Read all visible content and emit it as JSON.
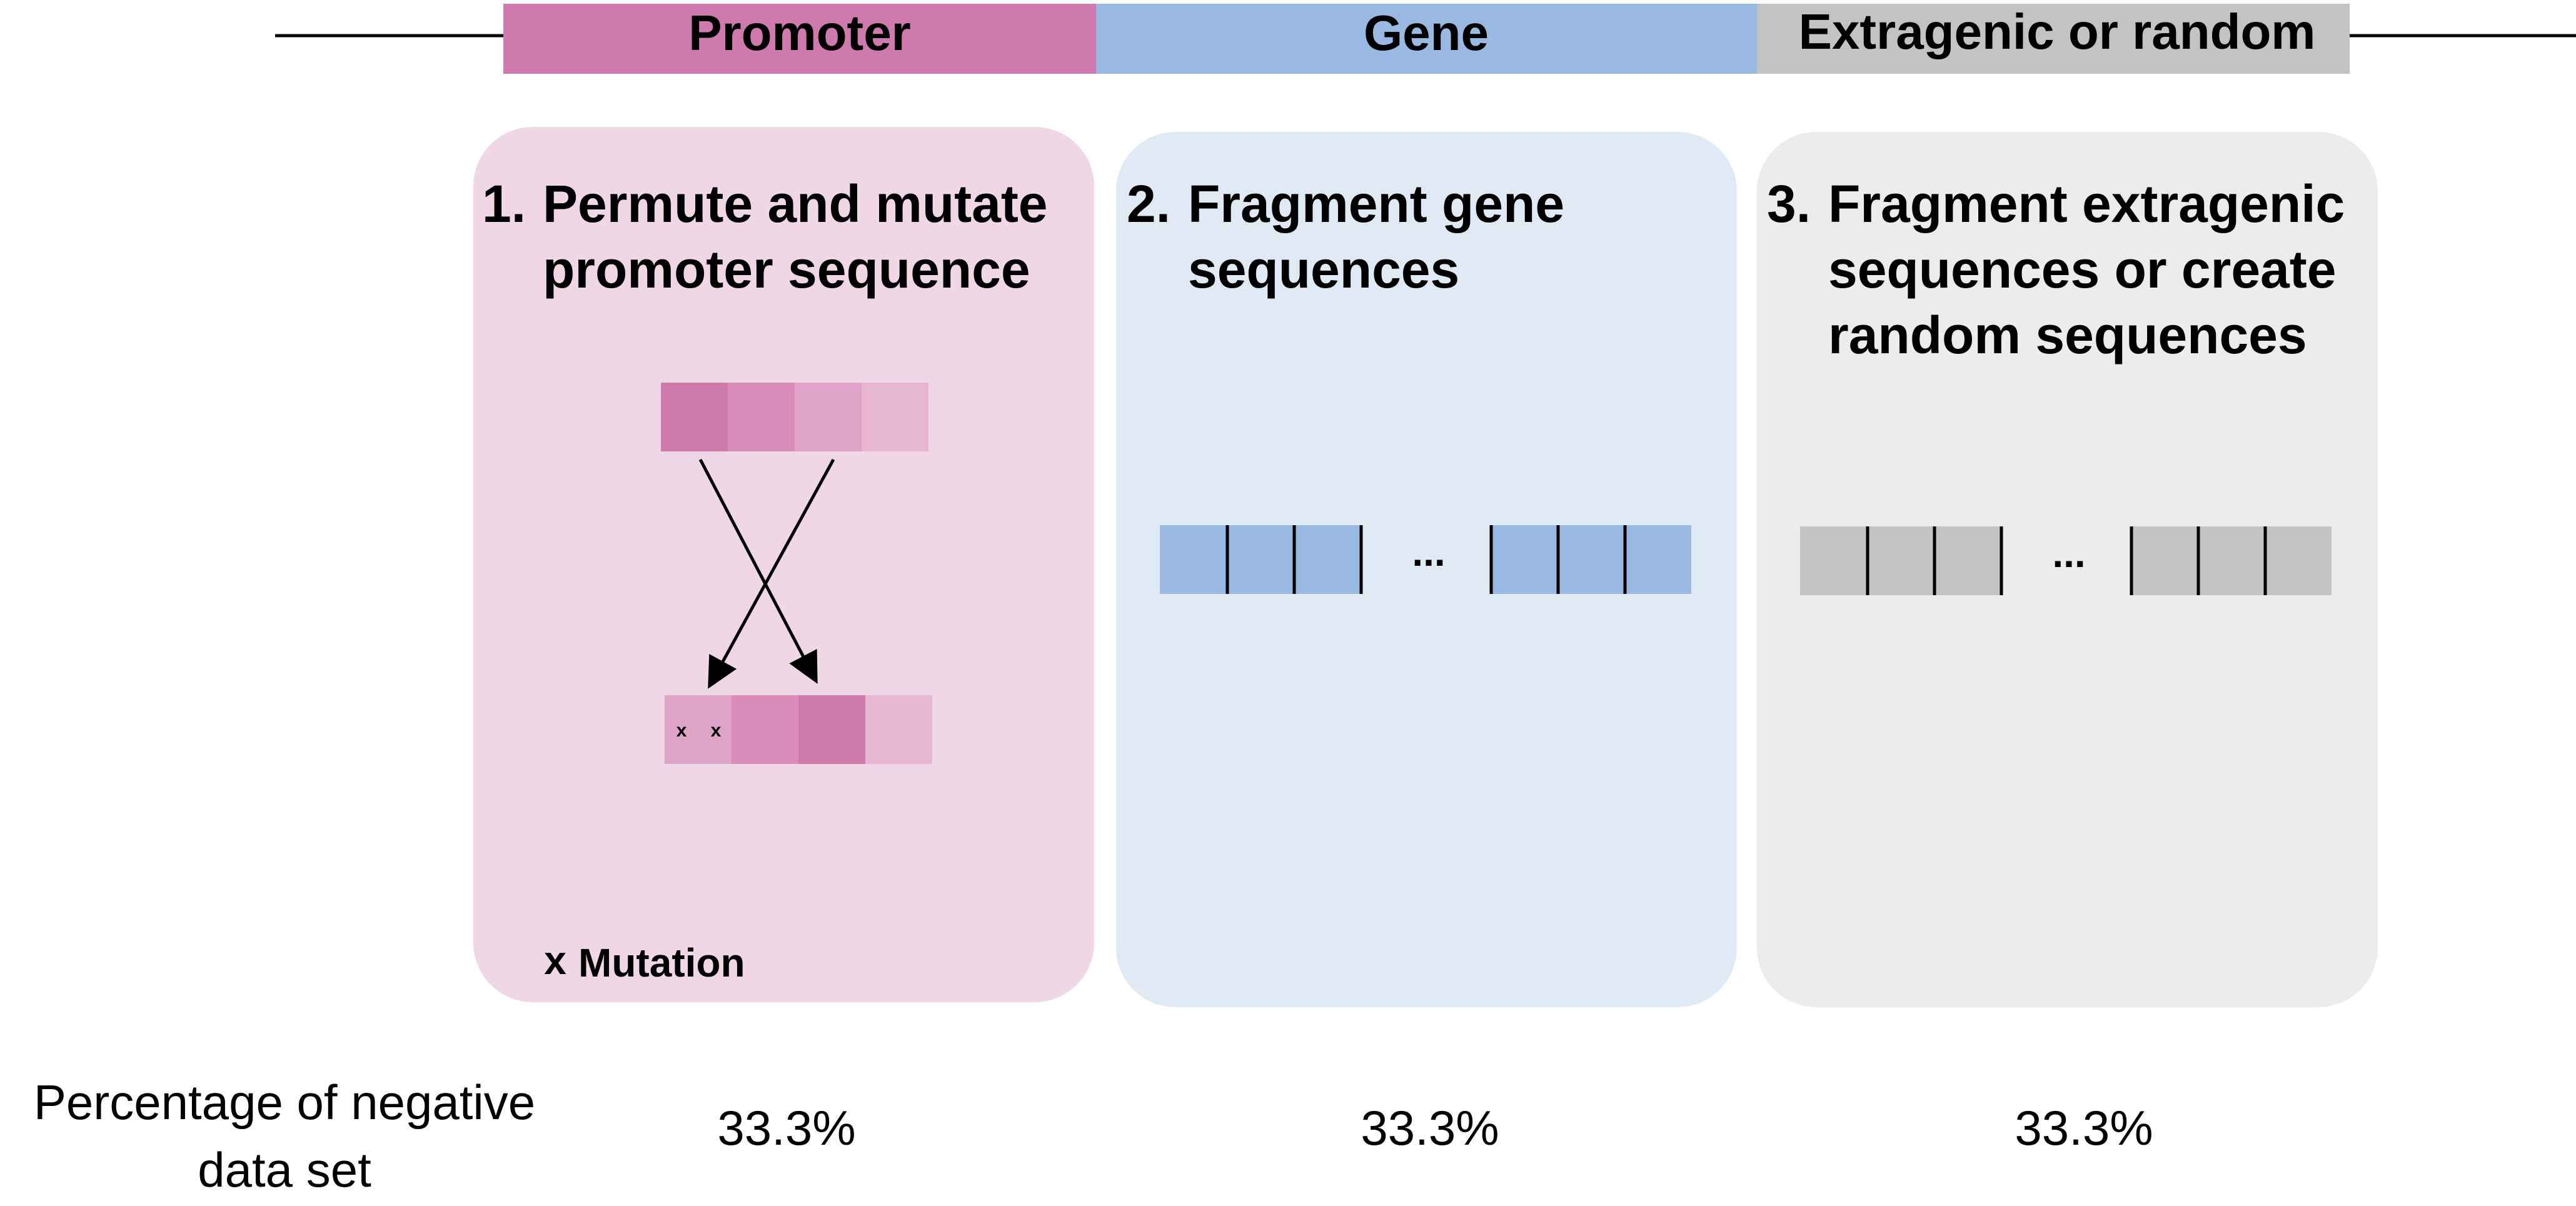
{
  "header": {
    "segments": [
      {
        "label": "Promoter",
        "color": "#cf7aac"
      },
      {
        "label": "Gene",
        "color": "#99b9e2"
      },
      {
        "label": "Extragenic or random",
        "color": "#c3c3c3"
      }
    ]
  },
  "panels": [
    {
      "number": "1.",
      "title_lines": [
        "Permute and mutate",
        "promoter sequence"
      ],
      "background": "#efd7e6",
      "legend": {
        "symbol": "x",
        "label": "Mutation",
        "symbol_color": "#e8175d"
      }
    },
    {
      "number": "2.",
      "title_lines": [
        "Fragment gene",
        "sequences"
      ],
      "background": "#e0eaf5",
      "ellipsis": "..."
    },
    {
      "number": "3.",
      "title_lines": [
        "Fragment extragenic",
        "sequences or create",
        "random sequences"
      ],
      "background": "#ececec",
      "ellipsis": "..."
    }
  ],
  "percentages": {
    "row_label_lines": [
      "Percentage of negative",
      "data set"
    ],
    "values": [
      "33.3%",
      "33.3%",
      "33.3%"
    ]
  },
  "colors": {
    "promoter_shades": [
      "#cf7aac",
      "#d98bba",
      "#e0a3c8",
      "#e6b6d3"
    ],
    "gene_fill": "#99b9e2",
    "extragenic_fill": "#c3c3c3"
  }
}
